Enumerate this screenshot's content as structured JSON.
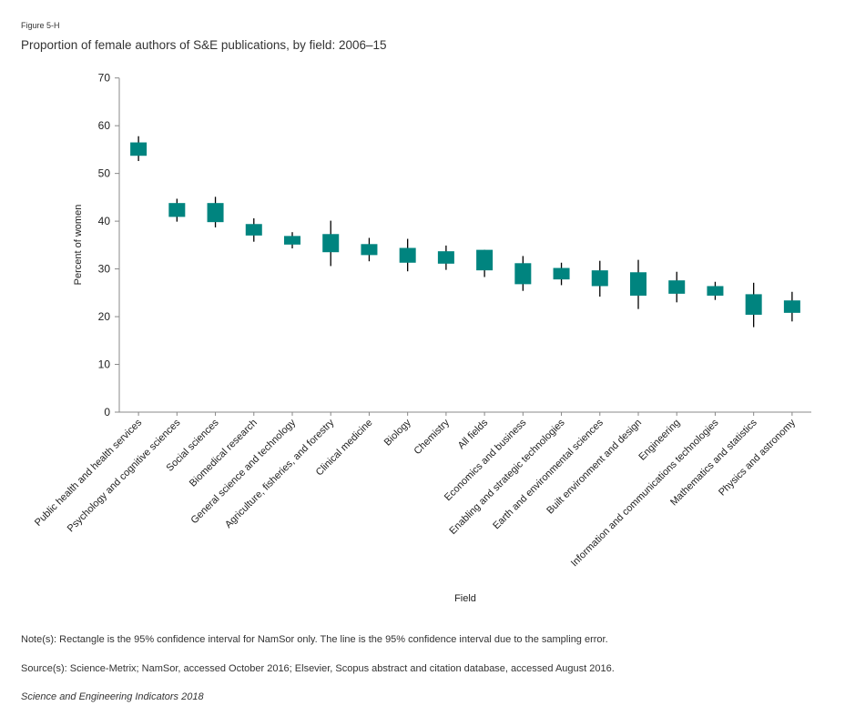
{
  "figure_label": "Figure 5-H",
  "notes": {
    "note": "Note(s): Rectangle is the 95% confidence interval for NamSor only. The line is the 95% confidence interval due to the sampling error.",
    "source": "Source(s): Science-Metrix; NamSor, accessed October 2016; Elsevier, Scopus abstract and citation database, accessed August 2016.",
    "publication": "Science and Engineering Indicators 2018"
  },
  "chart_data": {
    "type": "candlestick",
    "title": "Proportion of female authors of S&E publications, by field: 2006–15",
    "xlabel": "Field",
    "ylabel": "Percent of women",
    "ylim": [
      0,
      70
    ],
    "yticks": [
      0,
      10,
      20,
      30,
      40,
      50,
      60,
      70
    ],
    "grid": false,
    "legend": null,
    "colors": {
      "box": "#00847F",
      "whisker": "#000000",
      "axis": "#888888"
    },
    "series_description": {
      "box": "95% confidence interval for NamSor only",
      "line": "95% confidence interval due to sampling error"
    },
    "categories": [
      "Public health and health services",
      "Psychology and cognitive sciences",
      "Social sciences",
      "Biomedical research",
      "General science and technology",
      "Agriculture, fisheries, and forestry",
      "Clinical medicine",
      "Biology",
      "Chemistry",
      "All fields",
      "Economics and business",
      "Enabling and strategic technologies",
      "Earth and environmental sciences",
      "Built environment and design",
      "Engineering",
      "Information and communications technologies",
      "Mathematics and statistics",
      "Physics and astronomy"
    ],
    "box_low": [
      53.7,
      40.9,
      39.8,
      37.0,
      35.1,
      33.5,
      32.9,
      31.3,
      31.1,
      29.7,
      26.8,
      27.8,
      26.4,
      24.4,
      24.8,
      24.4,
      20.4,
      20.8
    ],
    "box_high": [
      56.5,
      43.8,
      43.8,
      39.4,
      36.9,
      37.3,
      35.2,
      34.4,
      33.7,
      34.0,
      31.2,
      30.2,
      29.7,
      29.3,
      27.6,
      26.4,
      24.7,
      23.4
    ],
    "line_low": [
      52.6,
      39.9,
      38.7,
      35.7,
      34.3,
      30.6,
      31.6,
      29.5,
      29.8,
      28.3,
      25.4,
      26.6,
      24.2,
      21.6,
      23.0,
      23.5,
      17.8,
      19.0
    ],
    "line_high": [
      57.8,
      44.7,
      45.1,
      40.6,
      37.7,
      40.1,
      36.5,
      36.3,
      34.9,
      34.0,
      32.7,
      31.3,
      31.7,
      31.9,
      29.4,
      27.3,
      27.1,
      25.2
    ]
  }
}
